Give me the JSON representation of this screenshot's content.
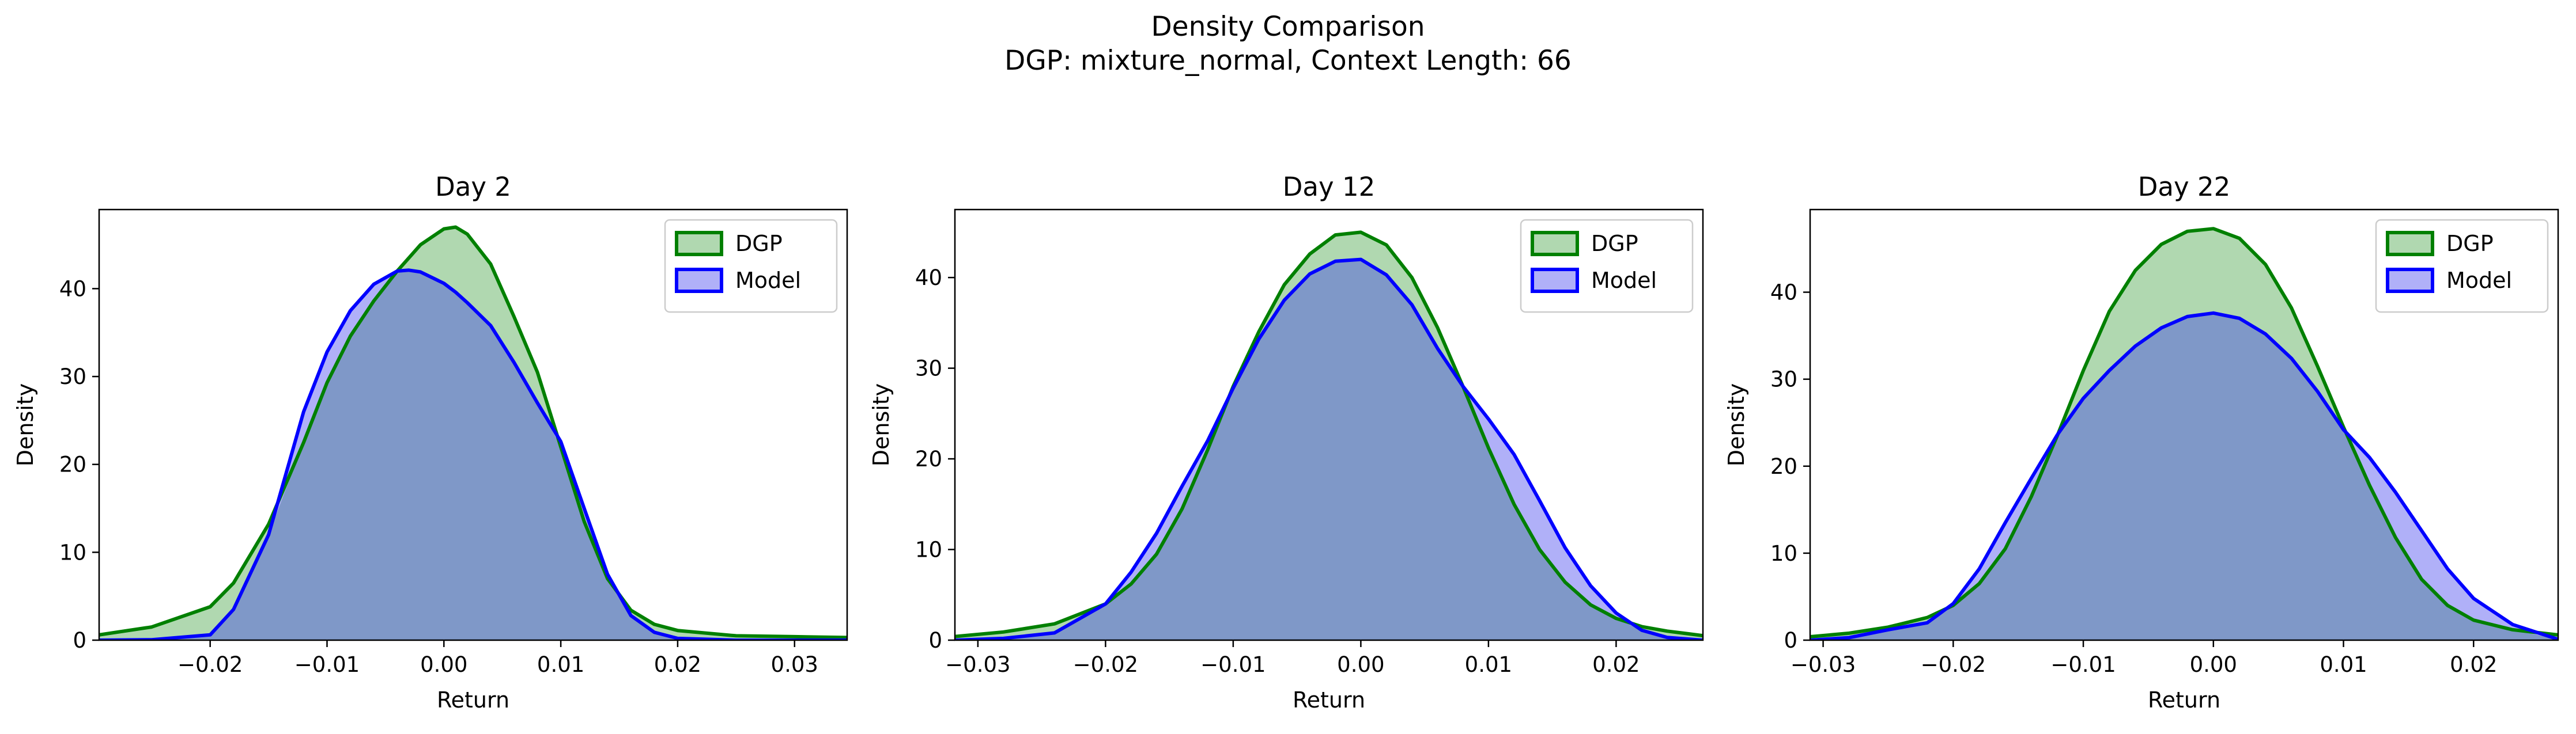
{
  "figure": {
    "title": "Density Comparison",
    "subtitle": "DGP: mixture_normal, Context Length: 66"
  },
  "colors": {
    "dgp_line": "#008000",
    "dgp_fill": "#b0d8b0",
    "model_line": "#0000ff",
    "model_fill": "#b0b0f8",
    "overlap_fill": "#7f98c8"
  },
  "chart_data": [
    {
      "type": "area",
      "title": "Day 2",
      "xlabel": "Return",
      "ylabel": "Density",
      "xlim": [
        -0.0295,
        0.0345
      ],
      "ylim": [
        0,
        49
      ],
      "xticks": [
        -0.02,
        -0.01,
        0.0,
        0.01,
        0.02,
        0.03
      ],
      "xtick_labels": [
        "−0.02",
        "−0.01",
        "0.00",
        "0.01",
        "0.02",
        "0.03"
      ],
      "yticks": [
        0,
        10,
        20,
        30,
        40
      ],
      "ytick_labels": [
        "0",
        "10",
        "20",
        "30",
        "40"
      ],
      "legend": "top-right",
      "x": [
        -0.0295,
        -0.025,
        -0.02,
        -0.018,
        -0.015,
        -0.012,
        -0.01,
        -0.008,
        -0.006,
        -0.004,
        -0.003,
        -0.002,
        0.0,
        0.001,
        0.002,
        0.004,
        0.006,
        0.008,
        0.01,
        0.012,
        0.014,
        0.016,
        0.018,
        0.02,
        0.025,
        0.03,
        0.0345
      ],
      "series": [
        {
          "name": "DGP",
          "values": [
            0.6,
            1.5,
            3.8,
            6.5,
            13.2,
            22.5,
            29.3,
            34.6,
            38.6,
            42.0,
            43.5,
            45.0,
            46.8,
            47.0,
            46.2,
            42.8,
            36.8,
            30.5,
            22.0,
            13.5,
            7.0,
            3.4,
            1.8,
            1.1,
            0.5,
            0.4,
            0.3
          ]
        },
        {
          "name": "Model",
          "values": [
            0.0,
            0.05,
            0.6,
            3.5,
            12.0,
            26.0,
            32.8,
            37.5,
            40.5,
            42.0,
            42.1,
            41.9,
            40.6,
            39.6,
            38.4,
            35.8,
            31.6,
            27.0,
            22.6,
            15.0,
            7.5,
            2.8,
            0.9,
            0.2,
            0.0,
            0.0,
            0.0
          ]
        }
      ]
    },
    {
      "type": "area",
      "title": "Day 12",
      "xlabel": "Return",
      "ylabel": "Density",
      "xlim": [
        -0.0318,
        0.0268
      ],
      "ylim": [
        0,
        47.5
      ],
      "xticks": [
        -0.03,
        -0.02,
        -0.01,
        0.0,
        0.01,
        0.02
      ],
      "xtick_labels": [
        "−0.03",
        "−0.02",
        "−0.01",
        "0.00",
        "0.01",
        "0.02"
      ],
      "yticks": [
        0,
        10,
        20,
        30,
        40
      ],
      "ytick_labels": [
        "0",
        "10",
        "20",
        "30",
        "40"
      ],
      "legend": "top-right",
      "x": [
        -0.0318,
        -0.028,
        -0.024,
        -0.02,
        -0.018,
        -0.016,
        -0.014,
        -0.012,
        -0.01,
        -0.008,
        -0.006,
        -0.004,
        -0.002,
        0.0,
        0.002,
        0.004,
        0.006,
        0.008,
        0.01,
        0.012,
        0.014,
        0.016,
        0.018,
        0.02,
        0.022,
        0.024,
        0.0268
      ],
      "series": [
        {
          "name": "DGP",
          "values": [
            0.4,
            0.9,
            1.8,
            4.0,
            6.2,
            9.5,
            14.5,
            21.0,
            28.0,
            34.0,
            39.2,
            42.6,
            44.7,
            45.0,
            43.6,
            40.0,
            34.5,
            28.0,
            21.2,
            15.0,
            10.0,
            6.4,
            3.9,
            2.4,
            1.5,
            1.0,
            0.5
          ]
        },
        {
          "name": "Model",
          "values": [
            0.0,
            0.2,
            0.8,
            4.0,
            7.5,
            11.8,
            17.0,
            22.0,
            27.8,
            33.2,
            37.5,
            40.4,
            41.8,
            42.0,
            40.3,
            37.0,
            32.2,
            28.0,
            24.4,
            20.5,
            15.4,
            10.2,
            6.0,
            3.0,
            1.1,
            0.3,
            0.0
          ]
        }
      ]
    },
    {
      "type": "area",
      "title": "Day 22",
      "xlabel": "Return",
      "ylabel": "Density",
      "xlim": [
        -0.031,
        0.0265
      ],
      "ylim": [
        0,
        49.5
      ],
      "xticks": [
        -0.03,
        -0.02,
        -0.01,
        0.0,
        0.01,
        0.02
      ],
      "xtick_labels": [
        "−0.03",
        "−0.02",
        "−0.01",
        "0.00",
        "0.01",
        "0.02"
      ],
      "yticks": [
        0,
        10,
        20,
        30,
        40
      ],
      "ytick_labels": [
        "0",
        "10",
        "20",
        "30",
        "40"
      ],
      "legend": "top-right",
      "x": [
        -0.031,
        -0.028,
        -0.025,
        -0.022,
        -0.02,
        -0.018,
        -0.016,
        -0.014,
        -0.012,
        -0.01,
        -0.008,
        -0.006,
        -0.004,
        -0.002,
        0.0,
        0.002,
        0.004,
        0.006,
        0.008,
        0.01,
        0.012,
        0.014,
        0.016,
        0.018,
        0.02,
        0.023,
        0.0265
      ],
      "series": [
        {
          "name": "DGP",
          "values": [
            0.4,
            0.8,
            1.5,
            2.6,
            4.0,
            6.5,
            10.5,
            16.5,
            23.5,
            31.0,
            37.8,
            42.5,
            45.5,
            47.0,
            47.3,
            46.2,
            43.2,
            38.2,
            31.5,
            24.5,
            17.8,
            11.8,
            7.0,
            4.0,
            2.3,
            1.2,
            0.6
          ]
        },
        {
          "name": "Model",
          "values": [
            0.0,
            0.3,
            1.2,
            2.0,
            4.2,
            8.2,
            13.5,
            18.6,
            23.6,
            27.8,
            31.0,
            33.8,
            35.9,
            37.2,
            37.6,
            37.0,
            35.2,
            32.4,
            28.6,
            24.2,
            21.0,
            17.0,
            12.6,
            8.2,
            4.8,
            1.8,
            0.1
          ]
        }
      ]
    }
  ]
}
